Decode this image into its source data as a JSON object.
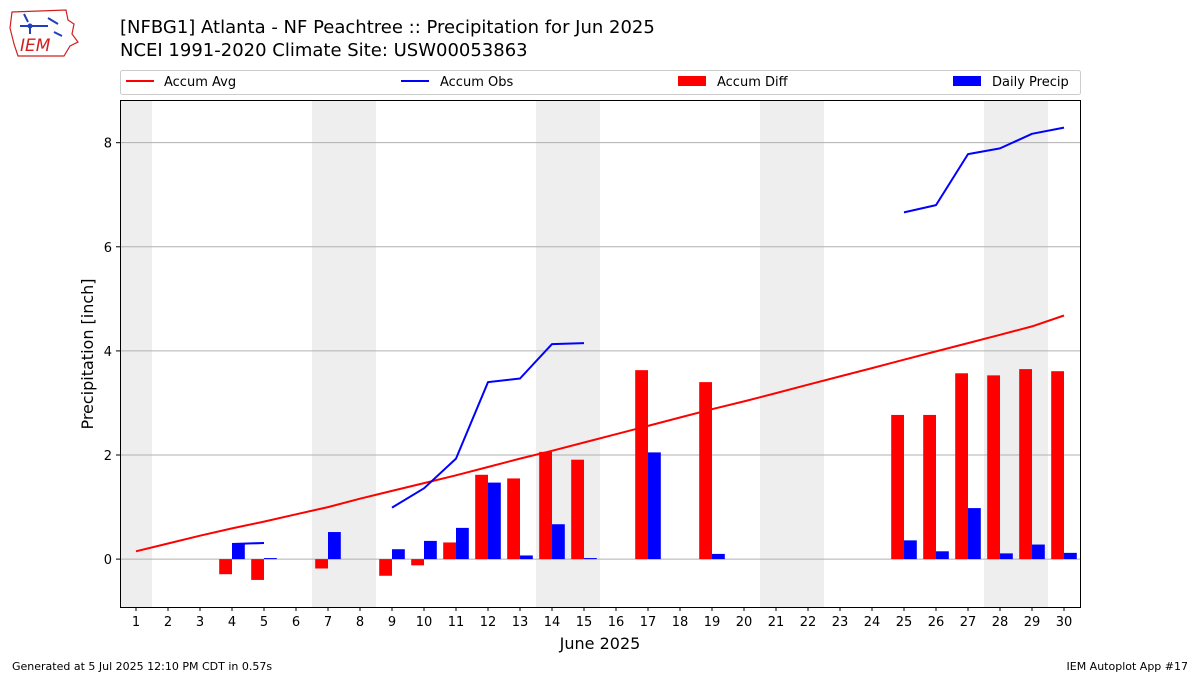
{
  "title_line1": "[NFBG1] Atlanta - NF Peachtree :: Precipitation for Jun 2025",
  "title_line2": "NCEI 1991-2020 Climate Site: USW00053863",
  "logo_text": "IEM",
  "footer_left": "Generated at 5 Jul 2025 12:10 PM CDT in 0.57s",
  "footer_right": "IEM Autoplot App #17",
  "colors": {
    "accum_avg": "#ff0000",
    "accum_obs": "#0000ff",
    "accum_diff": "#ff0000",
    "daily_precip": "#0000ff",
    "weekend_shade": "#eeeeee",
    "grid": "#b0b0b0"
  },
  "chart_data": {
    "type": "bar",
    "xlabel": "June 2025",
    "ylabel": "Precipitation [inch]",
    "x": [
      1,
      2,
      3,
      4,
      5,
      6,
      7,
      8,
      9,
      10,
      11,
      12,
      13,
      14,
      15,
      16,
      17,
      18,
      19,
      20,
      21,
      22,
      23,
      24,
      25,
      26,
      27,
      28,
      29,
      30
    ],
    "x_tick_labels": [
      "1",
      "2",
      "3",
      "4",
      "5",
      "6",
      "7",
      "8",
      "9",
      "10",
      "11",
      "12",
      "13",
      "14",
      "15",
      "16",
      "17",
      "18",
      "19",
      "20",
      "21",
      "22",
      "23",
      "24",
      "25",
      "26",
      "27",
      "28",
      "29",
      "30"
    ],
    "ylim": [
      -0.92,
      8.82
    ],
    "y_ticks": [
      0,
      2,
      4,
      6,
      8
    ],
    "grid": "horizontal",
    "legend": [
      "Accum Avg",
      "Accum Obs",
      "Accum Diff",
      "Daily Precip"
    ],
    "legend_placement": "top, above plot",
    "weekend_days": [
      1,
      7,
      8,
      14,
      15,
      21,
      22,
      28,
      29
    ],
    "series": [
      {
        "name": "Accum Avg",
        "type": "line",
        "values": [
          0.15,
          0.3,
          0.45,
          0.59,
          0.72,
          0.86,
          1.0,
          1.16,
          1.31,
          1.46,
          1.61,
          1.77,
          1.93,
          2.08,
          2.24,
          2.4,
          2.56,
          2.72,
          2.88,
          3.03,
          3.19,
          3.35,
          3.51,
          3.67,
          3.83,
          3.99,
          4.15,
          4.31,
          4.47,
          4.68
        ]
      },
      {
        "name": "Accum Obs",
        "type": "line",
        "values": [
          null,
          null,
          null,
          0.29,
          0.31,
          null,
          null,
          null,
          0.99,
          1.36,
          1.93,
          3.4,
          3.47,
          4.13,
          4.15,
          null,
          null,
          null,
          null,
          null,
          null,
          null,
          null,
          null,
          6.66,
          6.8,
          7.78,
          7.89,
          8.17,
          8.29
        ]
      },
      {
        "name": "Accum Diff",
        "type": "bar",
        "values": [
          null,
          null,
          null,
          -0.29,
          -0.4,
          null,
          -0.18,
          null,
          -0.32,
          -0.12,
          0.32,
          1.62,
          1.55,
          2.06,
          1.91,
          null,
          3.63,
          null,
          3.4,
          null,
          null,
          null,
          null,
          null,
          2.77,
          2.77,
          3.57,
          3.53,
          3.65,
          3.61
        ]
      },
      {
        "name": "Daily Precip",
        "type": "bar",
        "values": [
          null,
          null,
          null,
          0.29,
          0.02,
          null,
          0.52,
          null,
          0.19,
          0.35,
          0.6,
          1.47,
          0.07,
          0.67,
          0.02,
          null,
          2.05,
          null,
          0.1,
          null,
          null,
          null,
          null,
          null,
          0.36,
          0.15,
          0.98,
          0.11,
          0.28,
          0.12
        ]
      }
    ]
  }
}
